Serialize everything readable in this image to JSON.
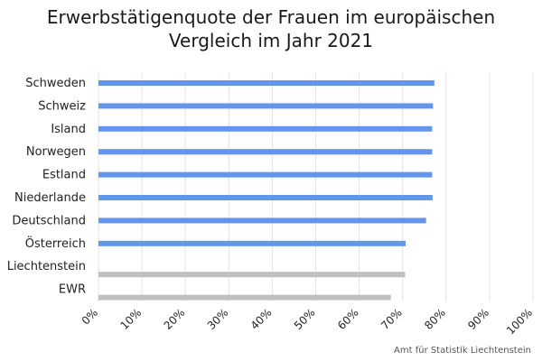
{
  "chart_data": {
    "type": "bar",
    "orientation": "horizontal",
    "title_lines": [
      "Erwerbstätigenquote der Frauen im europäischen",
      "Vergleich im Jahr 2021"
    ],
    "categories": [
      "Schweden",
      "Schweiz",
      "Island",
      "Norwegen",
      "Estland",
      "Niederlande",
      "Deutschland",
      "Österreich",
      "Liechtenstein",
      "EWR"
    ],
    "values": [
      77.3,
      77.0,
      76.8,
      76.8,
      76.8,
      76.9,
      75.4,
      70.7,
      70.6,
      67.3
    ],
    "bar_colors": [
      "#6495ED",
      "#6495ED",
      "#6495ED",
      "#6495ED",
      "#6495ED",
      "#6495ED",
      "#6495ED",
      "#6495ED",
      "#C0C0C0",
      "#C0C0C0"
    ],
    "xlim": [
      0,
      100
    ],
    "x_ticks": [
      "0%",
      "10%",
      "20%",
      "30%",
      "40%",
      "50%",
      "60%",
      "70%",
      "80%",
      "90%",
      "100%"
    ],
    "x_tick_values": [
      0,
      10,
      20,
      30,
      40,
      50,
      60,
      70,
      80,
      90,
      100
    ],
    "grid": "vertical",
    "xlabel": "",
    "ylabel": ""
  },
  "source_label": "Amt für Statistik Liechtenstein"
}
